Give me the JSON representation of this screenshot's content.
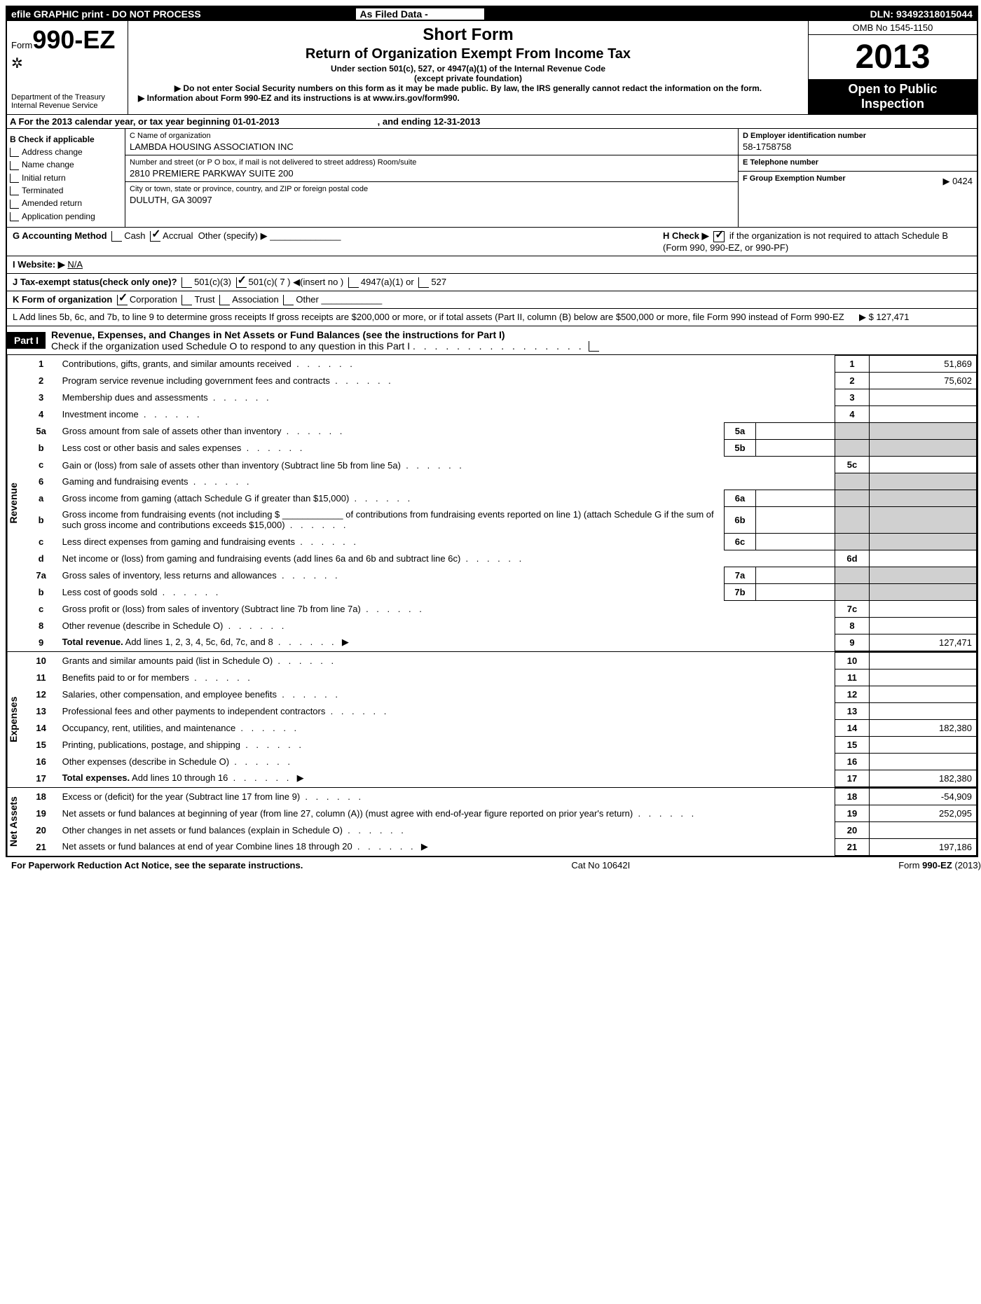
{
  "topbar": {
    "left": "efile GRAPHIC print - DO NOT PROCESS",
    "mid": "As Filed Data -",
    "right": "DLN: 93492318015044"
  },
  "header": {
    "formPrefix": "Form",
    "formNum": "990-EZ",
    "dept1": "Department of the Treasury",
    "dept2": "Internal Revenue Service",
    "title1": "Short Form",
    "title2": "Return of Organization Exempt From Income Tax",
    "sub1": "Under section 501(c), 527, or 4947(a)(1) of the Internal Revenue Code",
    "sub2": "(except private foundation)",
    "sub3": "▶ Do not enter Social Security numbers on this form as it may be made public. By law, the IRS generally cannot redact the information on the form.",
    "sub4": "▶ Information about Form 990-EZ and its instructions is at www.irs.gov/form990.",
    "omb": "OMB No 1545-1150",
    "year": "2013",
    "insp1": "Open to Public",
    "insp2": "Inspection"
  },
  "rowA": {
    "prefix": "A  For the 2013 calendar year, or tax year beginning 01-01-2013",
    "suffix": ", and ending 12-31-2013"
  },
  "checkB": {
    "header": "B  Check if applicable",
    "items": [
      "Address change",
      "Name change",
      "Initial return",
      "Terminated",
      "Amended return",
      "Application pending"
    ]
  },
  "org": {
    "cLabel": "C Name of organization",
    "cVal": "LAMBDA HOUSING ASSOCIATION INC",
    "addrLabel": "Number and street (or P  O  box, if mail is not delivered to street address) Room/suite",
    "addrVal": "2810 PREMIERE PARKWAY SUITE 200",
    "cityLabel": "City or town, state or province, country, and ZIP or foreign postal code",
    "cityVal": "DULUTH, GA  30097"
  },
  "right": {
    "dLabel": "D Employer identification number",
    "dVal": "58-1758758",
    "eLabel": "E Telephone number",
    "eVal": "",
    "fLabel": "F Group Exemption Number",
    "fVal": "▶ 0424"
  },
  "linesGHI": {
    "g": "G Accounting Method",
    "gCash": "Cash",
    "gAccrual": "Accrual",
    "gOther": "Other (specify) ▶",
    "h": "H  Check ▶",
    "hText": "if the organization is not required to attach Schedule B (Form 990, 990-EZ, or 990-PF)",
    "i": "I Website: ▶",
    "iVal": "N/A",
    "j": "J Tax-exempt status(check only one)?",
    "j1": "501(c)(3)",
    "j2": "501(c)( 7 ) ◀(insert no )",
    "j3": "4947(a)(1) or",
    "j4": "527",
    "k": "K Form of organization",
    "kCorp": "Corporation",
    "kTrust": "Trust",
    "kAssoc": "Association",
    "kOther": "Other",
    "l": "L Add lines 5b, 6c, and 7b, to line 9 to determine gross receipts  If gross receipts are $200,000 or more, or if total assets (Part II, column (B) below are $500,000 or more, file Form 990 instead of Form 990-EZ",
    "lVal": "▶ $ 127,471"
  },
  "part1": {
    "tag": "Part I",
    "title": "Revenue, Expenses, and Changes in Net Assets or Fund Balances (see the instructions for Part I)",
    "sub": "Check if the organization used Schedule O to respond to any question in this Part I"
  },
  "sections": {
    "revenue": "Revenue",
    "expenses": "Expenses",
    "netassets": "Net Assets"
  },
  "lines": [
    {
      "n": "1",
      "d": "Contributions, gifts, grants, and similar amounts received",
      "rn": "1",
      "rv": "51,869"
    },
    {
      "n": "2",
      "d": "Program service revenue including government fees and contracts",
      "rn": "2",
      "rv": "75,602"
    },
    {
      "n": "3",
      "d": "Membership dues and assessments",
      "rn": "3",
      "rv": ""
    },
    {
      "n": "4",
      "d": "Investment income",
      "rn": "4",
      "rv": ""
    },
    {
      "n": "5a",
      "d": "Gross amount from sale of assets other than inventory",
      "sn": "5a",
      "sv": ""
    },
    {
      "n": "b",
      "d": "Less  cost or other basis and sales expenses",
      "sn": "5b",
      "sv": ""
    },
    {
      "n": "c",
      "d": "Gain or (loss) from sale of assets other than inventory (Subtract line 5b from line 5a)",
      "rn": "5c",
      "rv": ""
    },
    {
      "n": "6",
      "d": "Gaming and fundraising events"
    },
    {
      "n": "a",
      "d": "Gross income from gaming (attach Schedule G if greater than $15,000)",
      "sn": "6a",
      "sv": ""
    },
    {
      "n": "b",
      "d": "Gross income from fundraising events (not including $ ____________ of contributions from fundraising events reported on line 1) (attach Schedule G if the sum of such gross income and contributions exceeds $15,000)",
      "sn": "6b",
      "sv": ""
    },
    {
      "n": "c",
      "d": "Less  direct expenses from gaming and fundraising events",
      "sn": "6c",
      "sv": ""
    },
    {
      "n": "d",
      "d": "Net income or (loss) from gaming and fundraising events (add lines 6a and 6b and subtract line 6c)",
      "rn": "6d",
      "rv": ""
    },
    {
      "n": "7a",
      "d": "Gross sales of inventory, less returns and allowances",
      "sn": "7a",
      "sv": ""
    },
    {
      "n": "b",
      "d": "Less  cost of goods sold",
      "sn": "7b",
      "sv": ""
    },
    {
      "n": "c",
      "d": "Gross profit or (loss) from sales of inventory (Subtract line 7b from line 7a)",
      "rn": "7c",
      "rv": ""
    },
    {
      "n": "8",
      "d": "Other revenue (describe in Schedule O)",
      "rn": "8",
      "rv": ""
    },
    {
      "n": "9",
      "d": "Total revenue. Add lines 1, 2, 3, 4, 5c, 6d, 7c, and 8",
      "rn": "9",
      "rv": "127,471",
      "arrow": true,
      "bold": true
    }
  ],
  "expLines": [
    {
      "n": "10",
      "d": "Grants and similar amounts paid (list in Schedule O)",
      "rn": "10",
      "rv": ""
    },
    {
      "n": "11",
      "d": "Benefits paid to or for members",
      "rn": "11",
      "rv": ""
    },
    {
      "n": "12",
      "d": "Salaries, other compensation, and employee benefits",
      "rn": "12",
      "rv": ""
    },
    {
      "n": "13",
      "d": "Professional fees and other payments to independent contractors",
      "rn": "13",
      "rv": ""
    },
    {
      "n": "14",
      "d": "Occupancy, rent, utilities, and maintenance",
      "rn": "14",
      "rv": "182,380"
    },
    {
      "n": "15",
      "d": "Printing, publications, postage, and shipping",
      "rn": "15",
      "rv": ""
    },
    {
      "n": "16",
      "d": "Other expenses (describe in Schedule O)",
      "rn": "16",
      "rv": ""
    },
    {
      "n": "17",
      "d": "Total expenses. Add lines 10 through 16",
      "rn": "17",
      "rv": "182,380",
      "arrow": true,
      "bold": true
    }
  ],
  "naLines": [
    {
      "n": "18",
      "d": "Excess or (deficit) for the year (Subtract line 17 from line 9)",
      "rn": "18",
      "rv": "-54,909"
    },
    {
      "n": "19",
      "d": "Net assets or fund balances at beginning of year (from line 27, column (A)) (must agree with end-of-year figure reported on prior year's return)",
      "rn": "19",
      "rv": "252,095"
    },
    {
      "n": "20",
      "d": "Other changes in net assets or fund balances (explain in Schedule O)",
      "rn": "20",
      "rv": ""
    },
    {
      "n": "21",
      "d": "Net assets or fund balances at end of year  Combine lines 18 through 20",
      "rn": "21",
      "rv": "197,186",
      "arrow": true
    }
  ],
  "footer": {
    "left": "For Paperwork Reduction Act Notice, see the separate instructions.",
    "mid": "Cat No 10642I",
    "right": "Form 990-EZ (2013)"
  }
}
